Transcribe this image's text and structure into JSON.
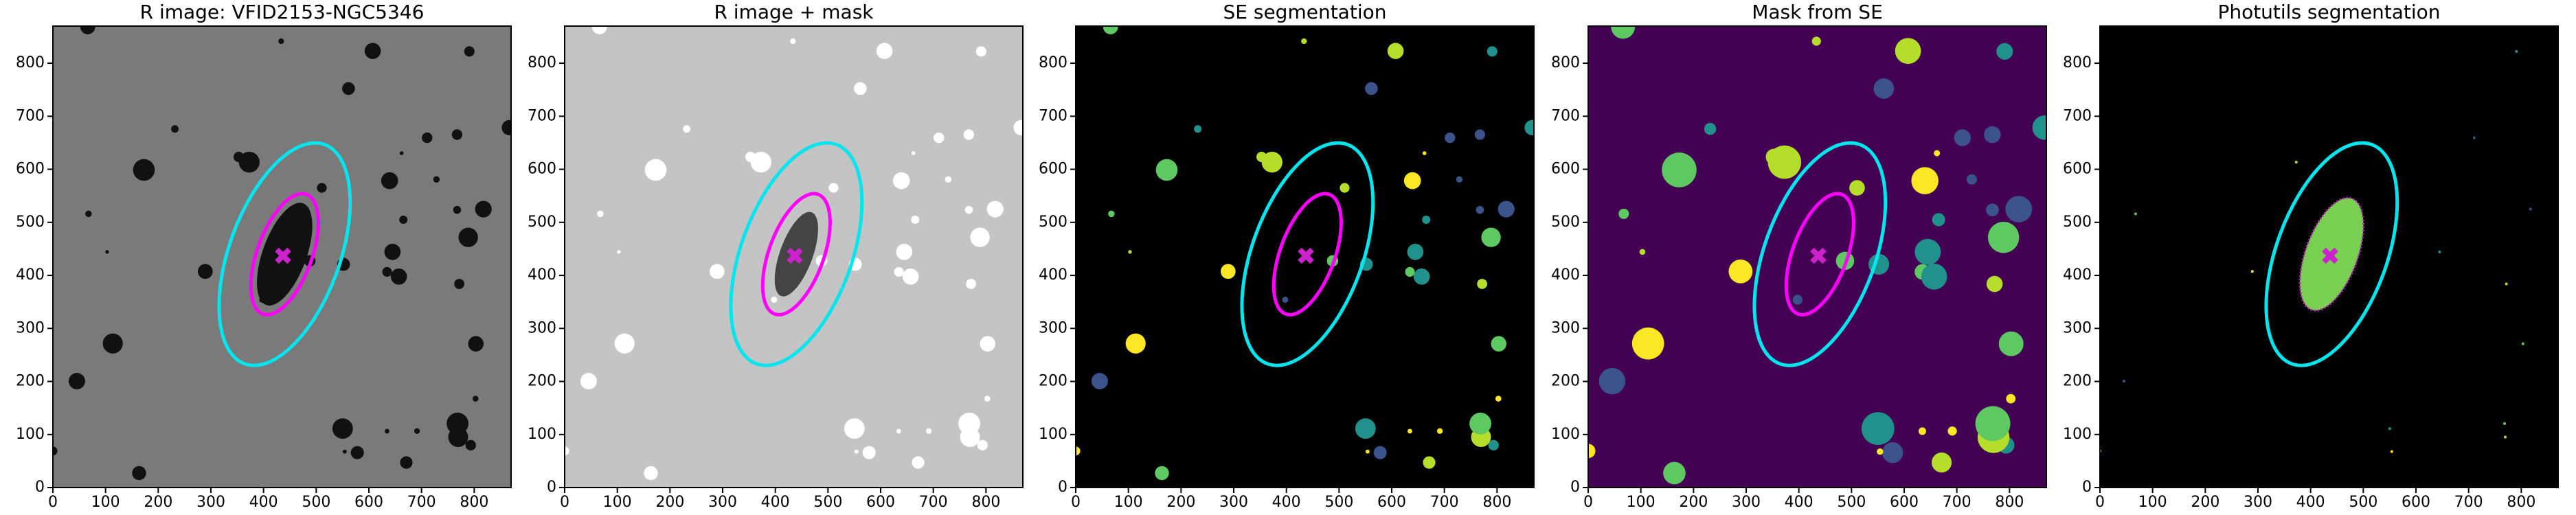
{
  "chart_data": [
    {
      "type": "image",
      "title": "R image: VFID2153-NGC5346",
      "background": "#7a7a7a",
      "xlim": [
        0,
        870
      ],
      "ylim": [
        0,
        870
      ],
      "xticks": [
        0,
        100,
        200,
        300,
        400,
        500,
        600,
        700,
        800
      ],
      "yticks": [
        0,
        100,
        200,
        300,
        400,
        500,
        600,
        700,
        800
      ],
      "ellipses": [
        {
          "color": "#00e5ee",
          "center": [
            440,
            440
          ],
          "a": 220,
          "b": 105,
          "angle": 20
        },
        {
          "color": "#ff00ff",
          "center": [
            440,
            440
          ],
          "a": 120,
          "b": 52,
          "angle": 20
        }
      ],
      "marker": {
        "color": "#cc22cc",
        "center": [
          437,
          437
        ]
      }
    },
    {
      "type": "image",
      "title": "R image + mask",
      "background": "#c4c4c4",
      "xlim": [
        0,
        870
      ],
      "ylim": [
        0,
        870
      ],
      "xticks": [
        0,
        100,
        200,
        300,
        400,
        500,
        600,
        700,
        800
      ],
      "yticks": [
        0,
        100,
        200,
        300,
        400,
        500,
        600,
        700,
        800
      ],
      "ellipses": [
        {
          "color": "#00e5ee",
          "center": [
            440,
            440
          ],
          "a": 220,
          "b": 105,
          "angle": 20
        },
        {
          "color": "#ff00ff",
          "center": [
            440,
            440
          ],
          "a": 120,
          "b": 52,
          "angle": 20
        }
      ],
      "marker": {
        "color": "#cc22cc",
        "center": [
          437,
          437
        ]
      }
    },
    {
      "type": "image",
      "title": "SE segmentation",
      "background": "#000000",
      "xlim": [
        0,
        870
      ],
      "ylim": [
        0,
        870
      ],
      "xticks": [
        0,
        100,
        200,
        300,
        400,
        500,
        600,
        700,
        800
      ],
      "yticks": [
        0,
        100,
        200,
        300,
        400,
        500,
        600,
        700,
        800
      ],
      "ellipses": [
        {
          "color": "#00e5ee",
          "center": [
            440,
            440
          ],
          "a": 220,
          "b": 105,
          "angle": 20
        },
        {
          "color": "#ff00ff",
          "center": [
            440,
            440
          ],
          "a": 120,
          "b": 52,
          "angle": 20
        }
      ],
      "marker": {
        "color": "#cc22cc",
        "center": [
          437,
          437
        ]
      }
    },
    {
      "type": "image",
      "title": "Mask from SE",
      "background": "#440154",
      "xlim": [
        0,
        870
      ],
      "ylim": [
        0,
        870
      ],
      "xticks": [
        0,
        100,
        200,
        300,
        400,
        500,
        600,
        700,
        800
      ],
      "yticks": [
        0,
        100,
        200,
        300,
        400,
        500,
        600,
        700,
        800
      ],
      "ellipses": [
        {
          "color": "#00e5ee",
          "center": [
            440,
            440
          ],
          "a": 220,
          "b": 105,
          "angle": 20
        },
        {
          "color": "#ff00ff",
          "center": [
            440,
            440
          ],
          "a": 120,
          "b": 52,
          "angle": 20
        }
      ],
      "marker": {
        "color": "#cc22cc",
        "center": [
          437,
          437
        ]
      }
    },
    {
      "type": "image",
      "title": "Photutils segmentation",
      "background": "#000000",
      "xlim": [
        0,
        870
      ],
      "ylim": [
        0,
        870
      ],
      "xticks": [
        0,
        100,
        200,
        300,
        400,
        500,
        600,
        700,
        800
      ],
      "yticks": [
        0,
        100,
        200,
        300,
        400,
        500,
        600,
        700,
        800
      ],
      "ellipses": [
        {
          "color": "#00e5ee",
          "center": [
            440,
            440
          ],
          "a": 220,
          "b": 105,
          "angle": 20
        },
        {
          "color": "#ff00ff",
          "center": [
            440,
            440
          ],
          "a": 120,
          "b": 52,
          "angle": 20
        }
      ],
      "marker": {
        "color": "#cc22cc",
        "center": [
          437,
          437
        ]
      }
    }
  ]
}
